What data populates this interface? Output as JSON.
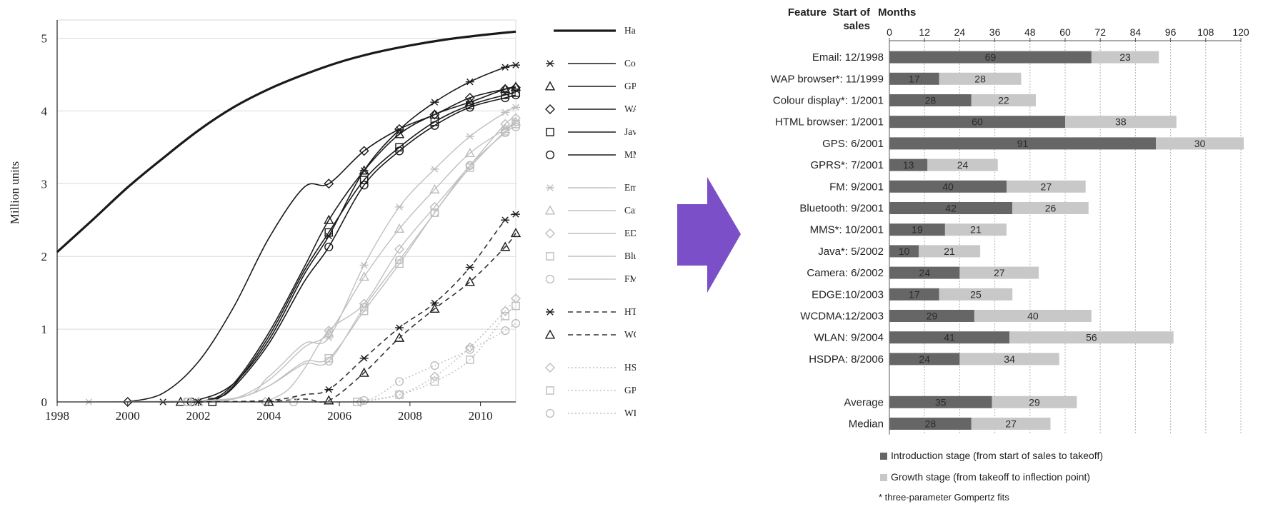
{
  "colors": {
    "arrow": "#7b4fc7",
    "intro": "#666666",
    "growth": "#c8c8c8",
    "dark_line": "#1a1a1a",
    "light_line": "#c0c0c0",
    "grid": "#d9d9d9"
  },
  "chart_data": [
    {
      "type": "line",
      "title": "",
      "ylabel": "Million units",
      "xlabel": "",
      "xlim": [
        1998,
        2011
      ],
      "ylim": [
        0,
        5.25
      ],
      "x_ticks": [
        1998,
        2000,
        2002,
        2004,
        2006,
        2008,
        2010
      ],
      "y_ticks": [
        0,
        1,
        2,
        3,
        4,
        5
      ],
      "grid": "horizontal",
      "legend_position": "right",
      "series": [
        {
          "name": "Handset base",
          "style": "thick-black",
          "marker": "none",
          "x": [
            1998,
            1999,
            2000,
            2001,
            2002,
            2003,
            2004,
            2005,
            2006,
            2007,
            2008,
            2009,
            2010,
            2011
          ],
          "y": [
            2.06,
            2.5,
            2.95,
            3.35,
            3.73,
            4.05,
            4.3,
            4.5,
            4.67,
            4.8,
            4.9,
            4.98,
            5.04,
            5.09
          ]
        },
        {
          "name": "Colour display",
          "style": "dark",
          "marker": "asterisk",
          "x": [
            2001,
            2002,
            2003,
            2004,
            2005,
            2005.7,
            2006.7,
            2007.7,
            2008.7,
            2009.7,
            2010.7,
            2011
          ],
          "y": [
            0,
            0.03,
            0.25,
            0.85,
            1.75,
            2.28,
            3.18,
            3.74,
            4.12,
            4.4,
            4.6,
            4.63
          ]
        },
        {
          "name": "GPRS",
          "style": "dark",
          "marker": "triangle",
          "x": [
            2001.5,
            2002.3,
            2003,
            2004,
            2005,
            2005.7,
            2006.7,
            2007.7,
            2008.7,
            2009.7,
            2010.7,
            2011
          ],
          "y": [
            0,
            0.02,
            0.25,
            0.95,
            1.85,
            2.5,
            3.18,
            3.68,
            3.95,
            4.12,
            4.3,
            4.33
          ]
        },
        {
          "name": "WAP browser",
          "style": "dark",
          "marker": "diamond",
          "x": [
            2000,
            2001,
            2002,
            2003,
            2004,
            2005,
            2005.7,
            2006.7,
            2007.7,
            2008.7,
            2009.7,
            2010.7,
            2011
          ],
          "y": [
            0,
            0.12,
            0.55,
            1.3,
            2.25,
            2.95,
            3.0,
            3.45,
            3.75,
            3.95,
            4.18,
            4.3,
            4.32
          ]
        },
        {
          "name": "Java",
          "style": "dark",
          "marker": "square",
          "x": [
            2002.4,
            2003,
            2004,
            2005,
            2005.7,
            2006.7,
            2007.7,
            2008.7,
            2009.7,
            2010.7,
            2011
          ],
          "y": [
            0,
            0.22,
            0.9,
            1.8,
            2.33,
            3.05,
            3.5,
            3.85,
            4.08,
            4.22,
            4.25
          ]
        },
        {
          "name": "MMS",
          "style": "dark",
          "marker": "circle",
          "x": [
            2001.8,
            2002.5,
            2003,
            2004,
            2005,
            2005.7,
            2006.7,
            2007.7,
            2008.7,
            2009.7,
            2010.7,
            2011
          ],
          "y": [
            0,
            0.05,
            0.2,
            0.8,
            1.65,
            2.13,
            2.98,
            3.45,
            3.8,
            4.05,
            4.18,
            4.22
          ]
        },
        {
          "name": "Email",
          "style": "light",
          "marker": "asterisk",
          "x": [
            1998.9,
            2003,
            2004,
            2005,
            2005.7,
            2006.7,
            2007.7,
            2008.7,
            2009.7,
            2010.7,
            2011
          ],
          "y": [
            0,
            0.05,
            0.35,
            0.8,
            0.88,
            1.88,
            2.68,
            3.2,
            3.65,
            3.98,
            4.05
          ]
        },
        {
          "name": "Camera",
          "style": "light",
          "marker": "triangle",
          "x": [
            2002,
            2003,
            2004,
            2005,
            2005.7,
            2006.7,
            2007.7,
            2008.7,
            2009.7,
            2010.7,
            2011
          ],
          "y": [
            0,
            0.04,
            0.3,
            0.75,
            0.95,
            1.72,
            2.38,
            2.92,
            3.42,
            3.75,
            3.85
          ]
        },
        {
          "name": "EDGE",
          "style": "light",
          "marker": "diamond",
          "x": [
            2003.9,
            2004.5,
            2005,
            2005.7,
            2006.7,
            2007.7,
            2008.7,
            2009.7,
            2010.7,
            2011
          ],
          "y": [
            0,
            0.15,
            0.45,
            0.98,
            1.35,
            2.1,
            2.68,
            3.25,
            3.82,
            3.9
          ]
        },
        {
          "name": "Bluetooth",
          "style": "light",
          "marker": "square",
          "x": [
            2001.7,
            2003,
            2004,
            2005,
            2005.7,
            2006.7,
            2007.7,
            2008.7,
            2009.7,
            2010.7,
            2011
          ],
          "y": [
            0,
            0.04,
            0.22,
            0.55,
            0.6,
            1.25,
            1.9,
            2.6,
            3.22,
            3.72,
            3.82
          ]
        },
        {
          "name": "FM receiver",
          "style": "light",
          "marker": "circle",
          "x": [
            2001.7,
            2003,
            2004,
            2005,
            2005.7,
            2006.7,
            2007.7,
            2008.7,
            2009.7,
            2010.7,
            2011
          ],
          "y": [
            0,
            0.04,
            0.22,
            0.52,
            0.56,
            1.3,
            1.95,
            2.6,
            3.25,
            3.7,
            3.78
          ]
        },
        {
          "name": "HTML browser",
          "style": "dark-dashed",
          "marker": "asterisk",
          "x": [
            2002,
            2004,
            2005,
            2005.7,
            2006.7,
            2007.7,
            2008.7,
            2009.7,
            2010.7,
            2011
          ],
          "y": [
            0,
            0.02,
            0.1,
            0.17,
            0.6,
            1.02,
            1.36,
            1.85,
            2.5,
            2.58
          ]
        },
        {
          "name": "WCDMA",
          "style": "dark-dashed",
          "marker": "triangle",
          "x": [
            2004,
            2005,
            2005.7,
            2006.7,
            2007.7,
            2008.7,
            2009.7,
            2010.7,
            2011
          ],
          "y": [
            0,
            0.04,
            0.02,
            0.4,
            0.88,
            1.28,
            1.65,
            2.13,
            2.32
          ]
        },
        {
          "name": "HSDPA",
          "style": "light-dotted",
          "marker": "diamond",
          "x": [
            2006.6,
            2007.7,
            2008.7,
            2009.7,
            2010.7,
            2011
          ],
          "y": [
            0,
            0.1,
            0.35,
            0.75,
            1.25,
            1.42
          ]
        },
        {
          "name": "GPS",
          "style": "light-dotted",
          "marker": "square",
          "x": [
            2006.5,
            2007.7,
            2008.7,
            2009.7,
            2010.7,
            2011
          ],
          "y": [
            0,
            0.1,
            0.28,
            0.58,
            1.18,
            1.32
          ]
        },
        {
          "name": "WLAN",
          "style": "light-dotted",
          "marker": "circle",
          "x": [
            2004.7,
            2006.7,
            2007.7,
            2008.7,
            2009.7,
            2010.7,
            2011
          ],
          "y": [
            0,
            0.02,
            0.28,
            0.5,
            0.72,
            0.98,
            1.08
          ]
        }
      ]
    },
    {
      "type": "bar",
      "orientation": "horizontal",
      "stacked": true,
      "header_feature": "Feature",
      "header_start_line1": "Start of",
      "header_start_line2": "sales",
      "axis_title": "Months",
      "xlim": [
        0,
        120
      ],
      "x_ticks": [
        0,
        12,
        24,
        36,
        48,
        60,
        72,
        84,
        96,
        108,
        120
      ],
      "grid": "vertical dotted",
      "legend_position": "bottom",
      "categories": [
        "Email: 12/1998",
        "WAP browser*: 11/1999",
        "Colour display*:  1/2001",
        "HTML browser:  1/2001",
        "GPS:  6/2001",
        "GPRS*:  7/2001",
        "FM:  9/2001",
        "Bluetooth:  9/2001",
        "MMS*: 10/2001",
        "Java*:  5/2002",
        "Camera:  6/2002",
        "EDGE:10/2003",
        "WCDMA:12/2003",
        "WLAN:  9/2004",
        "HSDPA:  8/2006",
        "",
        "Average",
        "Median"
      ],
      "series": [
        {
          "name": "Introduction stage (from start of sales to takeoff)",
          "values": [
            69,
            17,
            28,
            60,
            91,
            13,
            40,
            42,
            19,
            10,
            24,
            17,
            29,
            41,
            24,
            null,
            35,
            28
          ]
        },
        {
          "name": "Growth stage (from takeoff to inflection point)",
          "values": [
            23,
            28,
            22,
            38,
            30,
            24,
            27,
            26,
            21,
            21,
            27,
            25,
            40,
            56,
            34,
            null,
            29,
            27
          ]
        }
      ],
      "footnote": "* three-parameter Gompertz fits"
    }
  ]
}
